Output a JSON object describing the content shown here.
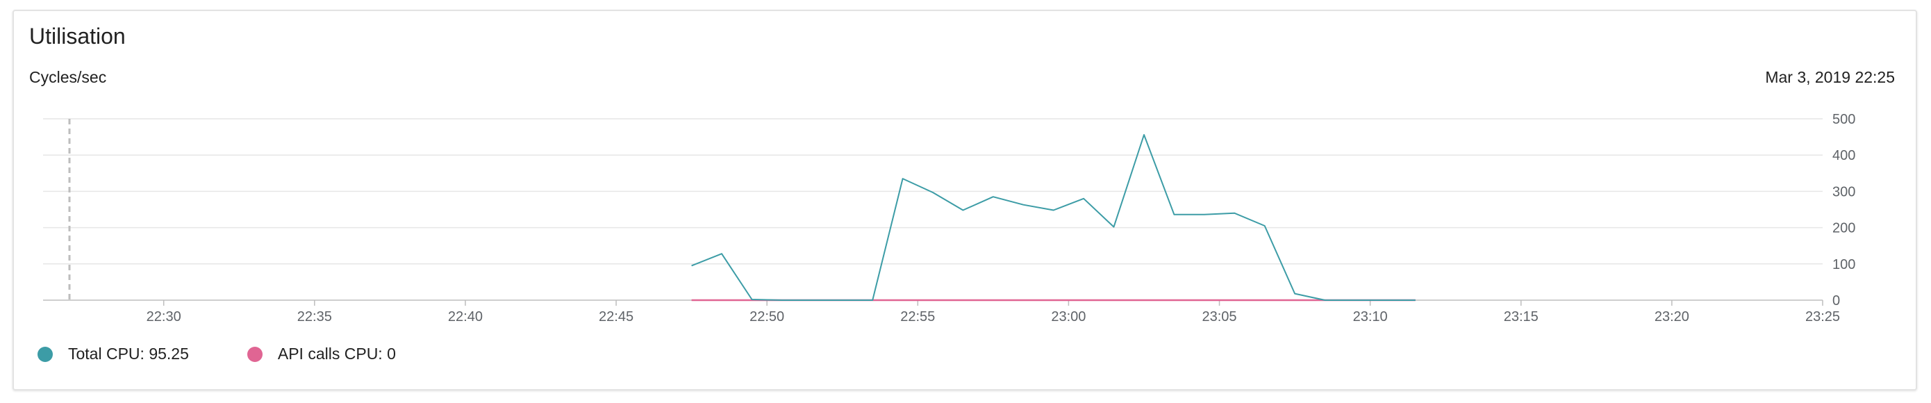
{
  "card": {
    "title": "Utilisation",
    "ylabel": "Cycles/sec",
    "timestamp": "Mar 3, 2019 22:25"
  },
  "legend": [
    {
      "label": "Total CPU: 95.25",
      "color": "#3c9ca6"
    },
    {
      "label": "API calls CPU: 0",
      "color": "#e06593"
    }
  ],
  "colors": {
    "grid": "#e6e6e6",
    "axis": "#bdbdbd",
    "cursor": "#bdbdbd"
  },
  "chart_data": {
    "type": "line",
    "xlim": [
      "22:26",
      "23:25"
    ],
    "ylim": [
      0,
      500
    ],
    "grid": true,
    "legend_placement": "bottom-left",
    "x_ticks": [
      "22:30",
      "22:35",
      "22:40",
      "22:45",
      "22:50",
      "22:55",
      "23:00",
      "23:05",
      "23:10",
      "23:15",
      "23:20",
      "23:25"
    ],
    "y_ticks": [
      0,
      100,
      200,
      300,
      400,
      500
    ],
    "cursor_x": "22:26",
    "series": [
      {
        "color": "#3c9ca6",
        "points": [
          [
            "22:47:30",
            95
          ],
          [
            "22:48:30",
            128
          ],
          [
            "22:49:30",
            2
          ],
          [
            "22:50:30",
            0
          ],
          [
            "22:52:30",
            0
          ],
          [
            "22:53:30",
            0
          ],
          [
            "22:54:30",
            335
          ],
          [
            "22:55:30",
            297
          ],
          [
            "22:56:30",
            248
          ],
          [
            "22:57:30",
            285
          ],
          [
            "22:58:30",
            263
          ],
          [
            "22:59:30",
            248
          ],
          [
            "23:00:30",
            280
          ],
          [
            "23:01:30",
            202
          ],
          [
            "23:02:30",
            456
          ],
          [
            "23:03:30",
            236
          ],
          [
            "23:04:30",
            236
          ],
          [
            "23:05:30",
            240
          ],
          [
            "23:06:30",
            205
          ],
          [
            "23:07:30",
            18
          ],
          [
            "23:08:30",
            0
          ],
          [
            "23:09:30",
            0
          ],
          [
            "23:10:30",
            0
          ],
          [
            "23:11:30",
            0
          ]
        ]
      },
      {
        "color": "#e06593",
        "points": [
          [
            "22:47:30",
            0
          ],
          [
            "23:11:30",
            0
          ]
        ]
      }
    ]
  }
}
